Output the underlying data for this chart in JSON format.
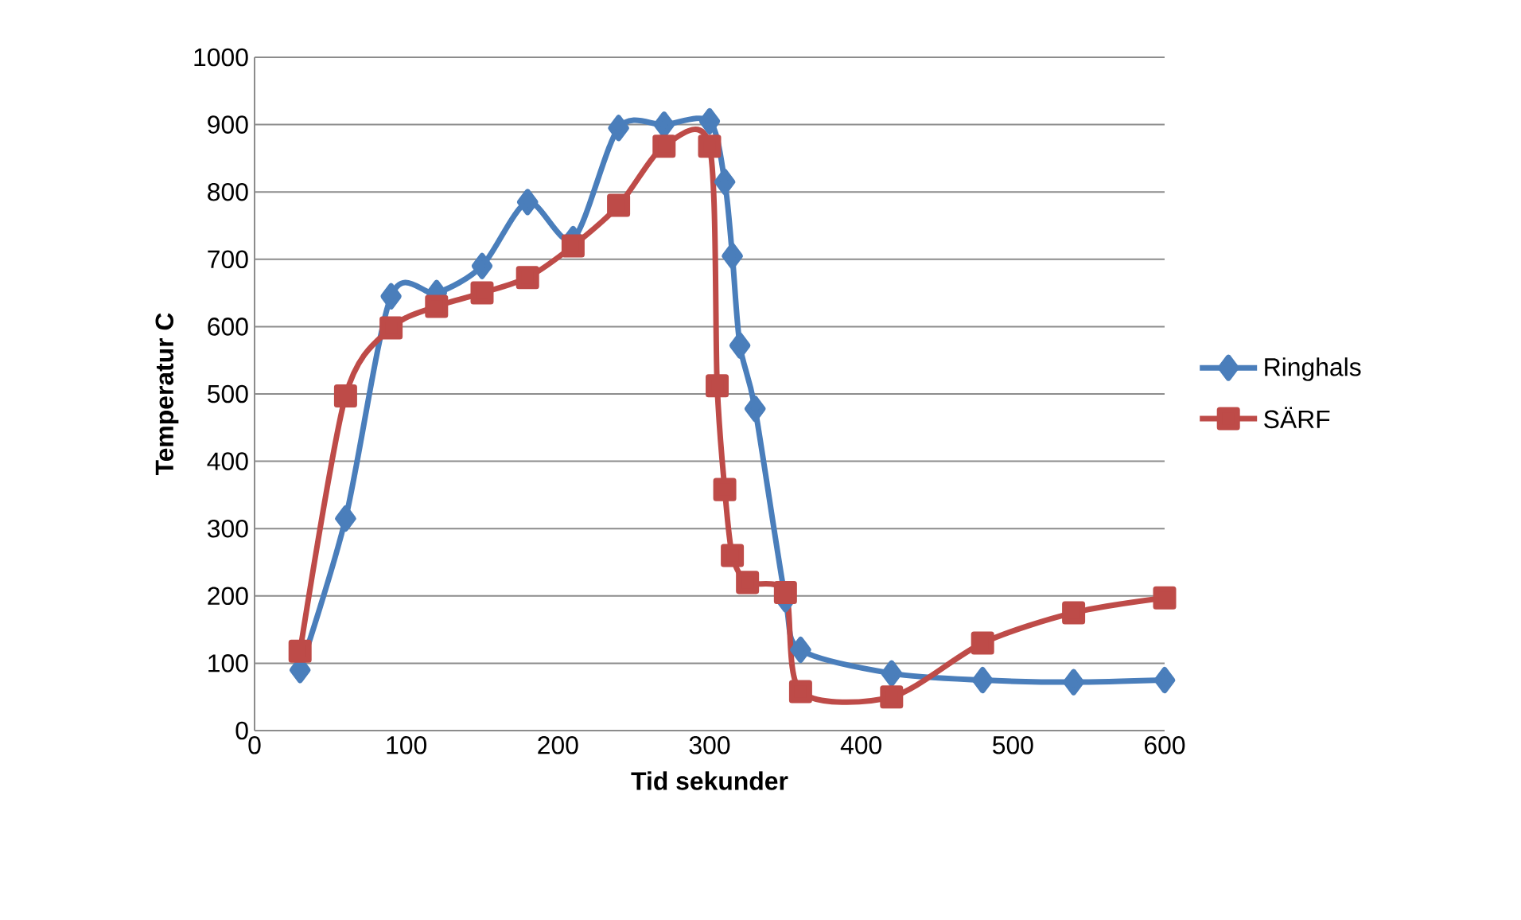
{
  "chart_data": {
    "type": "line",
    "xlabel": "Tid sekunder",
    "ylabel": "Temperatur C",
    "xlim": [
      0,
      600
    ],
    "xticks": [
      0,
      100,
      200,
      300,
      400,
      500,
      600
    ],
    "ylim": [
      0,
      1000
    ],
    "yticks": [
      0,
      100,
      200,
      300,
      400,
      500,
      600,
      700,
      800,
      900,
      1000
    ],
    "grid": "y",
    "legend": "right",
    "series": [
      {
        "name": "Ringhals",
        "color": "#4a7ebb",
        "marker": "diamond",
        "x": [
          30,
          60,
          90,
          120,
          150,
          180,
          210,
          240,
          270,
          300,
          310,
          315,
          320,
          330,
          350,
          360,
          420,
          480,
          540,
          600
        ],
        "values": [
          90,
          315,
          645,
          650,
          690,
          785,
          730,
          895,
          900,
          905,
          815,
          705,
          572,
          478,
          195,
          120,
          85,
          75,
          72,
          75
        ]
      },
      {
        "name": "SÄRF",
        "color": "#be4b48",
        "marker": "square",
        "x": [
          30,
          60,
          90,
          120,
          150,
          180,
          210,
          240,
          270,
          300,
          305,
          310,
          315,
          325,
          350,
          360,
          420,
          480,
          540,
          600
        ],
        "values": [
          118,
          497,
          598,
          630,
          650,
          673,
          720,
          780,
          868,
          868,
          512,
          358,
          260,
          220,
          205,
          58,
          50,
          130,
          175,
          197
        ]
      }
    ]
  }
}
